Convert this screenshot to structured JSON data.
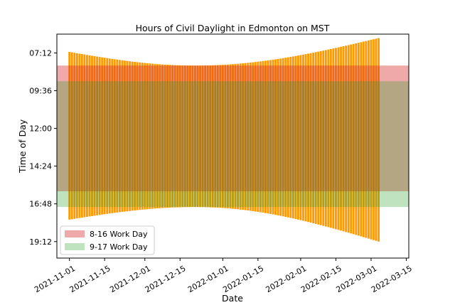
{
  "chart_data": {
    "type": "bar",
    "title": "Hours of Civil Daylight in Edmonton on MST",
    "xlabel": "Date",
    "ylabel": "Time of Day",
    "x_range": [
      "2021-10-27",
      "2022-03-16"
    ],
    "y_range_minutes": [
      1215,
      360
    ],
    "y_axis_inverted": true,
    "x_ticks": [
      "2021-11-01",
      "2021-11-15",
      "2021-12-01",
      "2021-12-15",
      "2022-01-01",
      "2022-01-15",
      "2022-02-01",
      "2022-02-15",
      "2022-03-01",
      "2022-03-15"
    ],
    "y_ticks": [
      "07:12",
      "09:36",
      "12:00",
      "14:24",
      "16:48",
      "19:12"
    ],
    "grid": false,
    "legend_position": "lower-left",
    "bands": [
      {
        "name": "8-16 Work Day",
        "start": "08:00",
        "end": "16:00",
        "color": "#d62728",
        "opacity": 0.4
      },
      {
        "name": "9-17 Work Day",
        "start": "09:00",
        "end": "17:00",
        "color": "#2ca02c",
        "opacity": 0.3
      }
    ],
    "bar_color": "#ff9900",
    "series_date_range": [
      "2021-11-01",
      "2022-03-04"
    ],
    "daylight_keypoints": [
      {
        "date": "2021-11-01",
        "start": "07:08",
        "end": "17:48"
      },
      {
        "date": "2021-12-21",
        "start": "08:00",
        "end": "17:00"
      },
      {
        "date": "2022-03-04",
        "start": "06:15",
        "end": "19:12"
      }
    ]
  }
}
